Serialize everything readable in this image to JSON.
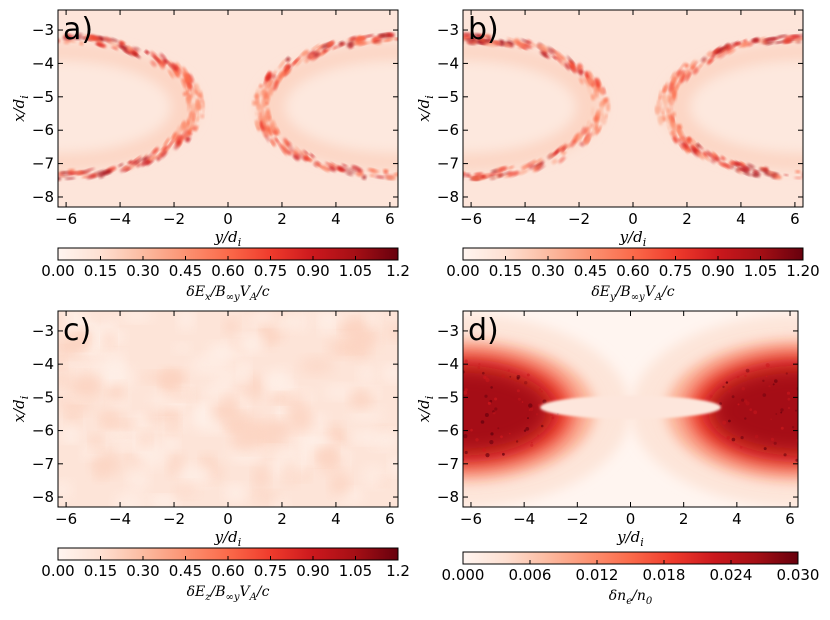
{
  "colors": {
    "cmap": [
      "#fff5f0",
      "#fee0d2",
      "#fcbba1",
      "#fc9272",
      "#fb6a4a",
      "#ef3b2c",
      "#cb181d",
      "#a50f15",
      "#67000d"
    ],
    "background_low": "#fde7dc",
    "axis": "#000000"
  },
  "chart_data": [
    {
      "type": "heatmap",
      "panel": "a)",
      "xlabel": "y/d",
      "xlabel_sub": "i",
      "ylabel": "x/d",
      "ylabel_sub": "i",
      "xlim": [
        -6.3,
        6.3
      ],
      "ylim": [
        -8.3,
        -2.4
      ],
      "x_ticks": [
        -6,
        -4,
        -2,
        0,
        2,
        4,
        6
      ],
      "x_tick_labels": [
        "−6",
        "−4",
        "−2",
        "0",
        "2",
        "4",
        "6"
      ],
      "y_ticks": [
        -3,
        -4,
        -5,
        -6,
        -7,
        -8
      ],
      "y_tick_labels": [
        "−3",
        "−4",
        "−5",
        "−6",
        "−7",
        "−8"
      ],
      "pattern": "fronts",
      "colorbar": {
        "min": 0.0,
        "max": 1.2,
        "ticks": [
          "0.00",
          "0.15",
          "0.30",
          "0.45",
          "0.60",
          "0.75",
          "0.90",
          "1.05",
          "1.2"
        ],
        "label": "δE_x/B_∞yV_A/c",
        "label_parts": {
          "pre": "δE",
          "sub1": "x",
          "mid": "/B",
          "sub2": "∞y",
          "post": "V",
          "sub3": "A",
          "end": "/c"
        }
      }
    },
    {
      "type": "heatmap",
      "panel": "b)",
      "xlabel": "y/d",
      "xlabel_sub": "i",
      "ylabel": "x/d",
      "ylabel_sub": "i",
      "xlim": [
        -6.3,
        6.3
      ],
      "ylim": [
        -8.3,
        -2.4
      ],
      "x_ticks": [
        -6,
        -4,
        -2,
        0,
        2,
        4,
        6
      ],
      "x_tick_labels": [
        "−6",
        "−4",
        "−2",
        "0",
        "2",
        "4",
        "6"
      ],
      "y_ticks": [
        -3,
        -4,
        -5,
        -6,
        -7,
        -8
      ],
      "y_tick_labels": [
        "−3",
        "−4",
        "−5",
        "−6",
        "−7",
        "−8"
      ],
      "pattern": "fronts",
      "colorbar": {
        "min": 0.0,
        "max": 1.2,
        "ticks": [
          "0.00",
          "0.15",
          "0.30",
          "0.45",
          "0.60",
          "0.75",
          "0.90",
          "1.05",
          "1.20"
        ],
        "label": "δE_y/B_∞yV_A/c",
        "label_parts": {
          "pre": "δE",
          "sub1": "y",
          "mid": "/B",
          "sub2": "∞y",
          "post": "V",
          "sub3": "A",
          "end": "/c"
        }
      }
    },
    {
      "type": "heatmap",
      "panel": "c)",
      "xlabel": "y/d",
      "xlabel_sub": "i",
      "ylabel": "x/d",
      "ylabel_sub": "i",
      "xlim": [
        -6.3,
        6.3
      ],
      "ylim": [
        -8.3,
        -2.4
      ],
      "x_ticks": [
        -6,
        -4,
        -2,
        0,
        2,
        4,
        6
      ],
      "x_tick_labels": [
        "−6",
        "−4",
        "−2",
        "0",
        "2",
        "4",
        "6"
      ],
      "y_ticks": [
        -3,
        -4,
        -5,
        -6,
        -7,
        -8
      ],
      "y_tick_labels": [
        "−3",
        "−4",
        "−5",
        "−6",
        "−7",
        "−8"
      ],
      "pattern": "noise",
      "colorbar": {
        "min": 0.0,
        "max": 1.2,
        "ticks": [
          "0.00",
          "0.15",
          "0.30",
          "0.45",
          "0.60",
          "0.75",
          "0.90",
          "1.05",
          "1.2"
        ],
        "label": "δE_z/B_∞yV_A/c",
        "label_parts": {
          "pre": "δE",
          "sub1": "z",
          "mid": "/B",
          "sub2": "∞y",
          "post": "V",
          "sub3": "A",
          "end": "/c"
        }
      }
    },
    {
      "type": "heatmap",
      "panel": "d)",
      "xlabel": "y/d",
      "xlabel_sub": "i",
      "ylabel": "x/d",
      "ylabel_sub": "i",
      "xlim": [
        -6.3,
        6.3
      ],
      "ylim": [
        -8.3,
        -2.4
      ],
      "x_ticks": [
        -6,
        -4,
        -2,
        0,
        2,
        4,
        6
      ],
      "x_tick_labels": [
        "−6",
        "−4",
        "−2",
        "0",
        "2",
        "4",
        "6"
      ],
      "y_ticks": [
        -3,
        -4,
        -5,
        -6,
        -7,
        -8
      ],
      "y_tick_labels": [
        "−3",
        "−4",
        "−5",
        "−6",
        "−7",
        "−8"
      ],
      "pattern": "density",
      "colorbar": {
        "min": 0.0,
        "max": 0.03,
        "ticks": [
          "0.000",
          "0.006",
          "0.012",
          "0.018",
          "0.024",
          "0.030"
        ],
        "label": "δn_e/n_0",
        "label_parts": {
          "pre": "δn",
          "sub1": "e",
          "mid": "/n",
          "sub2": "0",
          "post": "",
          "sub3": "",
          "end": ""
        }
      }
    }
  ]
}
